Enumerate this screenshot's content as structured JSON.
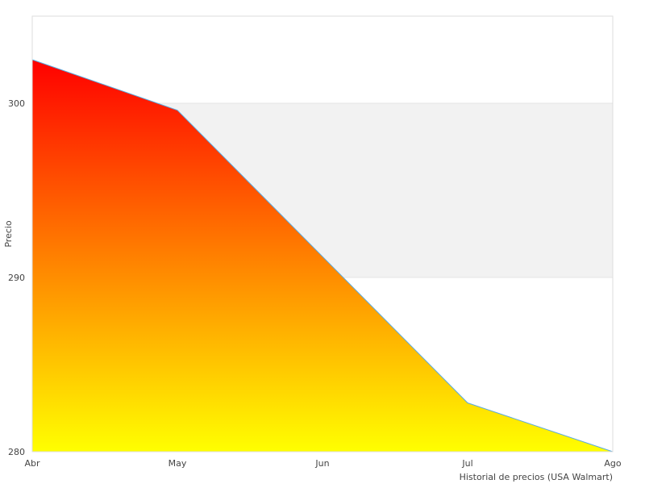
{
  "chart_data": {
    "type": "area",
    "categories": [
      "Abr",
      "May",
      "Jun",
      "Jul",
      "Ago"
    ],
    "values": [
      302.5,
      299.6,
      null,
      282.8,
      280.0
    ],
    "ylabel": "Precio",
    "xlabel": "Historial de precios (USA Walmart)",
    "ylim": [
      280,
      305
    ],
    "yticks": [
      280,
      290,
      300
    ],
    "grid": "alternating horizontal bands",
    "fill": "vertical gradient red to yellow",
    "colors": {
      "gradient_top": "#ff0000",
      "gradient_bottom": "#ffff00",
      "line": "#5aaae0",
      "band": "#f2f2f2",
      "frame": "#dddddd",
      "left_edge": "#aa2222"
    }
  }
}
